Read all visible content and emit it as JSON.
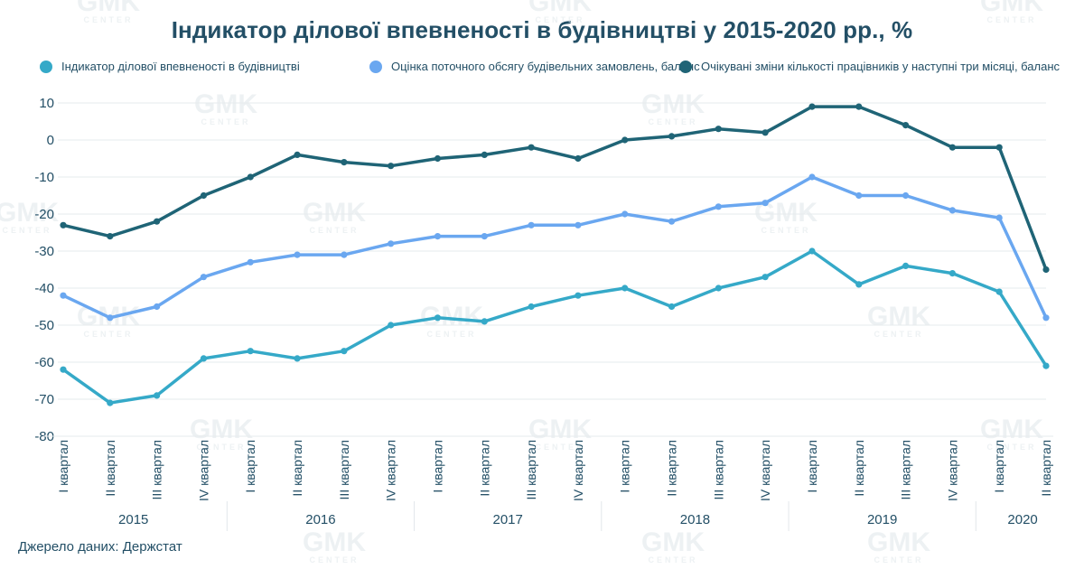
{
  "source": "Джерело даних: Держстат",
  "watermark": {
    "text": "GMK",
    "subtext": "CENTER"
  },
  "chart_data": {
    "type": "line",
    "title": "Індикатор ділової впевненості в будівництві у 2015-2020 рр., %",
    "ylim": [
      -80,
      10
    ],
    "yticks": [
      10,
      0,
      -10,
      -20,
      -30,
      -40,
      -50,
      -60,
      -70,
      -80
    ],
    "grid": true,
    "legend_position": "top",
    "x": [
      "I квартал",
      "II квартал",
      "III квартал",
      "IV квартал",
      "I квартал",
      "II квартал",
      "III квартал",
      "IV квартал",
      "I квартал",
      "II квартал",
      "III квартал",
      "IV квартал",
      "I квартал",
      "II квартал",
      "III квартал",
      "IV квартал",
      "I квартал",
      "II квартал",
      "III квартал",
      "IV квартал",
      "I квартал",
      "II квартал"
    ],
    "years": [
      {
        "label": "2015",
        "count": 4
      },
      {
        "label": "2016",
        "count": 4
      },
      {
        "label": "2017",
        "count": 4
      },
      {
        "label": "2018",
        "count": 4
      },
      {
        "label": "2019",
        "count": 4
      },
      {
        "label": "2020",
        "count": 2
      }
    ],
    "series": [
      {
        "name": "Індикатор ділової впевненості в будівництві",
        "color": "#35a9c8",
        "values": [
          -62,
          -71,
          -69,
          -59,
          -57,
          -59,
          -57,
          -50,
          -48,
          -49,
          -45,
          -42,
          -40,
          -45,
          -40,
          -37,
          -30,
          -39,
          -34,
          -36,
          -41,
          -61
        ]
      },
      {
        "name": "Оцінка поточного обсягу будівельних замовлень, баланс",
        "color": "#6aa7f0",
        "values": [
          -42,
          -48,
          -45,
          -37,
          -33,
          -31,
          -31,
          -28,
          -26,
          -26,
          -23,
          -23,
          -20,
          -22,
          -18,
          -17,
          -10,
          -15,
          -15,
          -19,
          -21,
          -48
        ]
      },
      {
        "name": "Очікувані зміни кількості працівників у наступні три місяці, баланс",
        "color": "#1f6476",
        "values": [
          -23,
          -26,
          -22,
          -15,
          -10,
          -4,
          -6,
          -7,
          -5,
          -4,
          -2,
          -5,
          0,
          1,
          3,
          2,
          9,
          9,
          4,
          -2,
          -2,
          -35
        ]
      }
    ]
  }
}
